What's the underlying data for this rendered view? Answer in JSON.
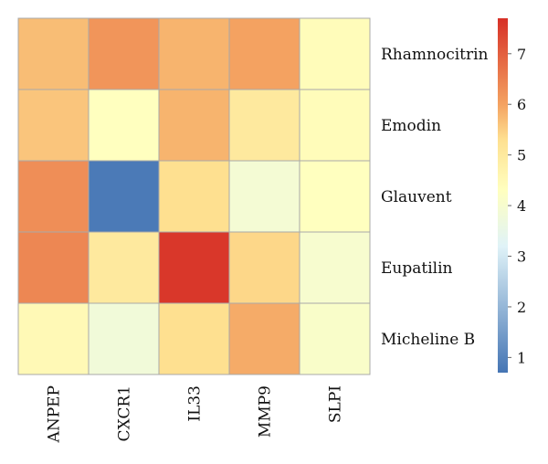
{
  "chart_data": {
    "type": "heatmap",
    "title": "",
    "xlabel": "",
    "ylabel": "",
    "columns": [
      "ANPEP",
      "CXCR1",
      "IL33",
      "MMP9",
      "SLPI"
    ],
    "rows": [
      "Rhamnocitrin",
      "Emodin",
      "Glauvent",
      "Eupatilin",
      "Micheline B"
    ],
    "values": [
      [
        5.7,
        6.2,
        5.8,
        6.0,
        4.4
      ],
      [
        5.6,
        4.3,
        5.8,
        5.0,
        4.4
      ],
      [
        6.3,
        0.8,
        5.3,
        3.9,
        4.3
      ],
      [
        6.4,
        5.0,
        7.6,
        5.4,
        4.0
      ],
      [
        4.5,
        3.8,
        5.3,
        5.9,
        4.1
      ]
    ],
    "colorbar": {
      "range": [
        0.7,
        7.7
      ],
      "ticks": [
        1,
        2,
        3,
        4,
        5,
        6,
        7
      ],
      "placement": "right",
      "stops": [
        {
          "value": 0.7,
          "color": "#4575b4"
        },
        {
          "value": 3.2,
          "color": "#e0f3f8"
        },
        {
          "value": 4.3,
          "color": "#ffffbf"
        },
        {
          "value": 5.3,
          "color": "#fee090"
        },
        {
          "value": 6.0,
          "color": "#f4a261"
        },
        {
          "value": 7.7,
          "color": "#d73027"
        }
      ]
    },
    "grid": true
  }
}
